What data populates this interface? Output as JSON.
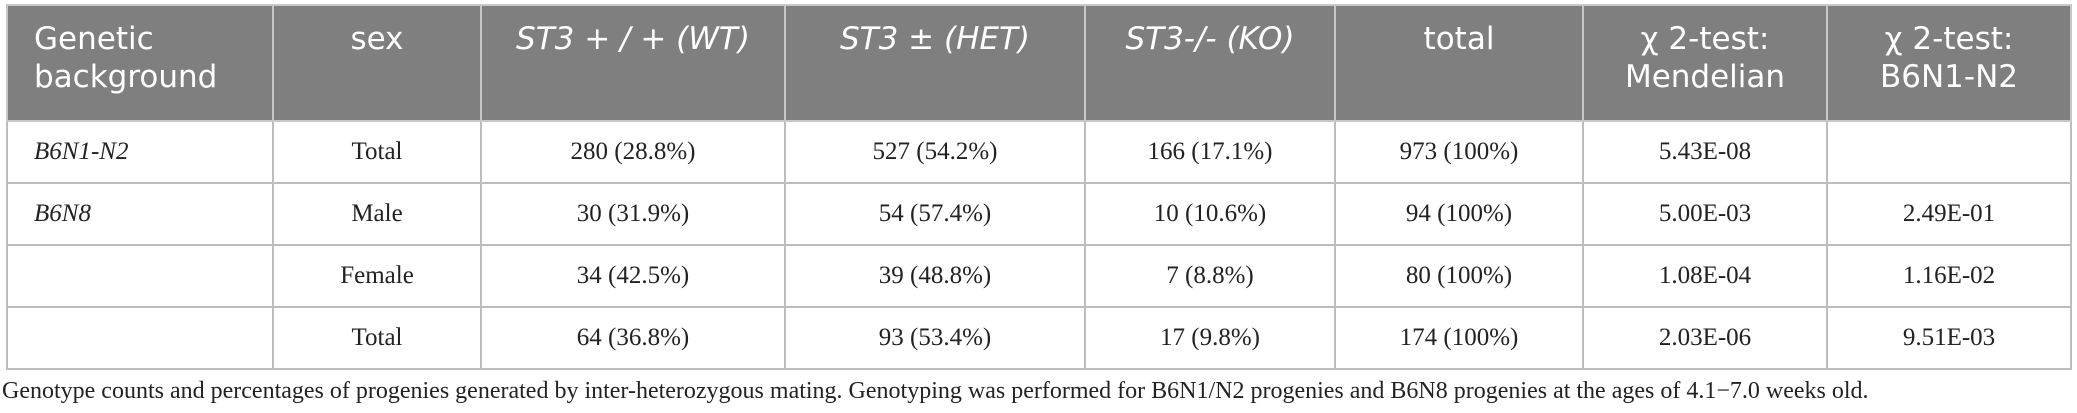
{
  "table": {
    "headers": [
      "Genetic background",
      "sex",
      "ST3 + / + (WT)",
      "ST3 ± (HET)",
      "ST3-/- (KO)",
      "total",
      "χ 2-test: Mendelian",
      "χ 2-test: B6N1-N2"
    ],
    "rows": [
      [
        "B6N1-N2",
        "Total",
        "280 (28.8%)",
        "527 (54.2%)",
        "166 (17.1%)",
        "973 (100%)",
        "5.43E-08",
        ""
      ],
      [
        "B6N8",
        "Male",
        "30 (31.9%)",
        "54 (57.4%)",
        "10 (10.6%)",
        "94 (100%)",
        "5.00E-03",
        "2.49E-01"
      ],
      [
        "",
        "Female",
        "34 (42.5%)",
        "39 (48.8%)",
        "7 (8.8%)",
        "80 (100%)",
        "1.08E-04",
        "1.16E-02"
      ],
      [
        "",
        "Total",
        "64 (36.8%)",
        "93 (53.4%)",
        "17 (9.8%)",
        "174 (100%)",
        "2.03E-06",
        "9.51E-03"
      ]
    ]
  },
  "caption": "Genotype counts and percentages of progenies generated by inter-heterozygous mating. Genotyping was performed for B6N1/N2 progenies and B6N8 progenies at the ages of 4.1−7.0 weeks old."
}
